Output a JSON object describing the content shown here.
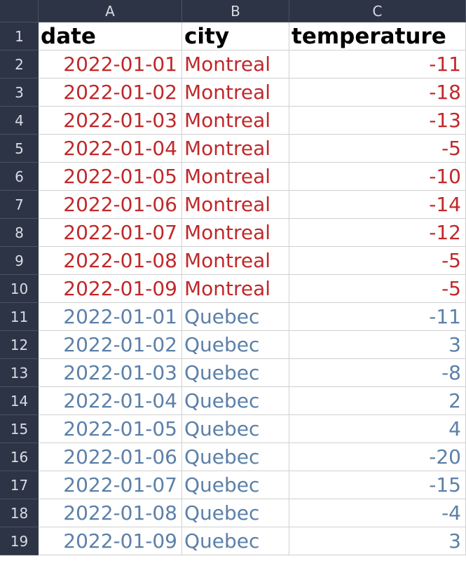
{
  "columns": [
    "A",
    "B",
    "C"
  ],
  "header_row": {
    "row_number": "1",
    "cells": [
      "date",
      "city",
      "temperature"
    ]
  },
  "rows": [
    {
      "row_number": "2",
      "date": "2022-01-01",
      "city": "Montreal",
      "temperature": "-11"
    },
    {
      "row_number": "3",
      "date": "2022-01-02",
      "city": "Montreal",
      "temperature": "-18"
    },
    {
      "row_number": "4",
      "date": "2022-01-03",
      "city": "Montreal",
      "temperature": "-13"
    },
    {
      "row_number": "5",
      "date": "2022-01-04",
      "city": "Montreal",
      "temperature": "-5"
    },
    {
      "row_number": "6",
      "date": "2022-01-05",
      "city": "Montreal",
      "temperature": "-10"
    },
    {
      "row_number": "7",
      "date": "2022-01-06",
      "city": "Montreal",
      "temperature": "-14"
    },
    {
      "row_number": "8",
      "date": "2022-01-07",
      "city": "Montreal",
      "temperature": "-12"
    },
    {
      "row_number": "9",
      "date": "2022-01-08",
      "city": "Montreal",
      "temperature": "-5"
    },
    {
      "row_number": "10",
      "date": "2022-01-09",
      "city": "Montreal",
      "temperature": "-5"
    },
    {
      "row_number": "11",
      "date": "2022-01-01",
      "city": "Quebec",
      "temperature": "-11"
    },
    {
      "row_number": "12",
      "date": "2022-01-02",
      "city": "Quebec",
      "temperature": "3"
    },
    {
      "row_number": "13",
      "date": "2022-01-03",
      "city": "Quebec",
      "temperature": "-8"
    },
    {
      "row_number": "14",
      "date": "2022-01-04",
      "city": "Quebec",
      "temperature": "2"
    },
    {
      "row_number": "15",
      "date": "2022-01-05",
      "city": "Quebec",
      "temperature": "4"
    },
    {
      "row_number": "16",
      "date": "2022-01-06",
      "city": "Quebec",
      "temperature": "-20"
    },
    {
      "row_number": "17",
      "date": "2022-01-07",
      "city": "Quebec",
      "temperature": "-15"
    },
    {
      "row_number": "18",
      "date": "2022-01-08",
      "city": "Quebec",
      "temperature": "-4"
    },
    {
      "row_number": "19",
      "date": "2022-01-09",
      "city": "Quebec",
      "temperature": "3"
    }
  ],
  "colors": {
    "montreal_text": "#c0282a",
    "quebec_text": "#5b80a8",
    "header_bg": "#2d3445"
  }
}
